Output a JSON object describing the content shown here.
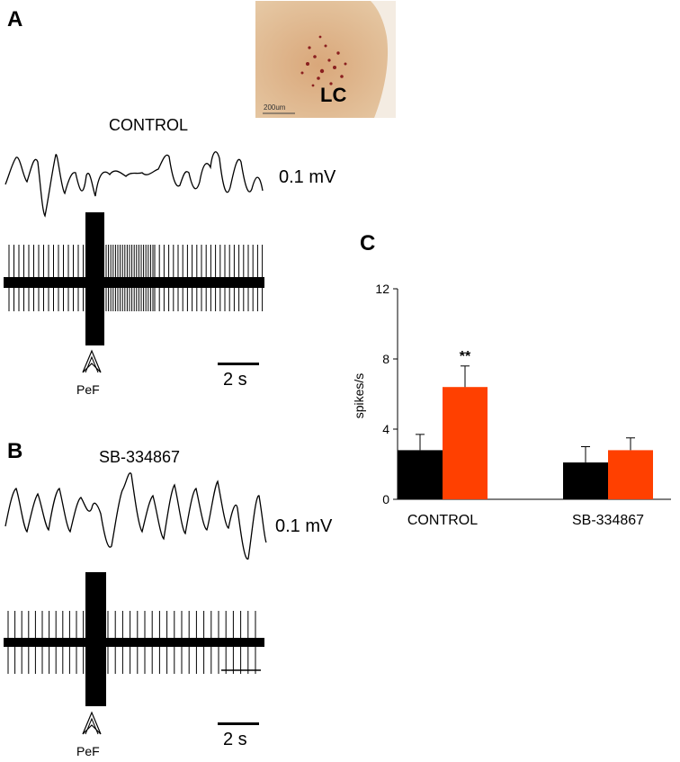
{
  "panels": {
    "a": {
      "letter": "A",
      "condition": "CONTROL",
      "voltage_scale": "0.1 mV",
      "time_scale": "2 s",
      "stim_label": "PeF"
    },
    "b": {
      "letter": "B",
      "condition": "SB-334867",
      "voltage_scale": "0.1 mV",
      "time_scale": "2 s",
      "stim_label": "PeF"
    },
    "c": {
      "letter": "C"
    }
  },
  "histology": {
    "region_label": "LC",
    "scale_label": "200um"
  },
  "colors": {
    "bar_baseline": "#000000",
    "bar_stim": "#ff4000",
    "tissue": "#d8b68c"
  },
  "chart_data": {
    "type": "bar",
    "categories": [
      "CONTROL",
      "SB-334867"
    ],
    "series": [
      {
        "values": [
          2.8,
          2.1
        ],
        "errors": [
          0.9,
          0.9
        ],
        "color": "#000000"
      },
      {
        "values": [
          6.4,
          2.8
        ],
        "errors": [
          1.2,
          0.7
        ],
        "color": "#ff4000"
      }
    ],
    "ylabel": "spikes/s",
    "ylim": [
      0,
      12
    ],
    "yticks": [
      0,
      4,
      8,
      12
    ],
    "annotations": [
      {
        "category": "CONTROL",
        "series": 1,
        "text": "**"
      }
    ],
    "grid": false
  }
}
